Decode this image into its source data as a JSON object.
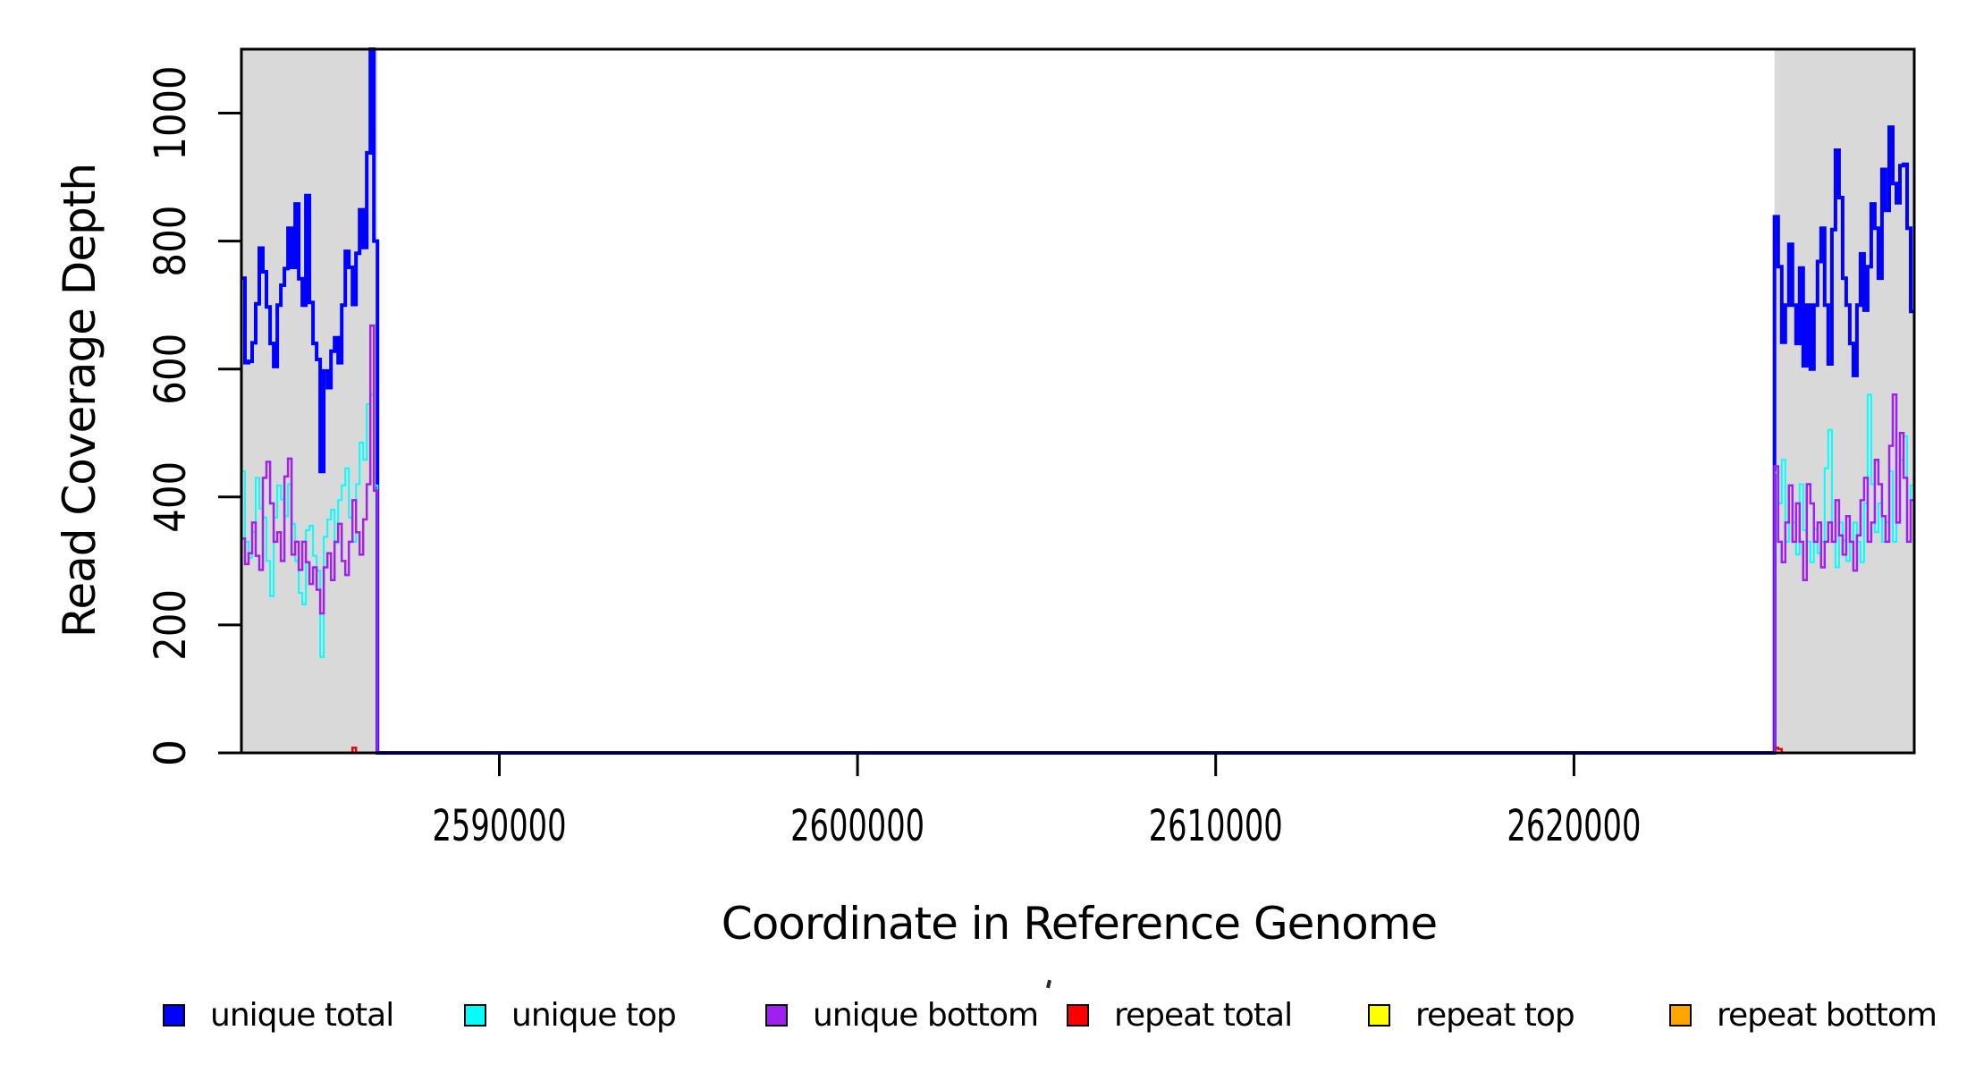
{
  "figure": {
    "xlabel": "Coordinate in Reference Genome",
    "ylabel": "Read Coverage Depth"
  },
  "legend": {
    "items": [
      {
        "label": "unique total",
        "color": "#0000FF"
      },
      {
        "label": "unique top",
        "color": "#00FFFF"
      },
      {
        "label": "unique bottom",
        "color": "#A020F0"
      },
      {
        "label": "repeat total",
        "color": "#FF0000"
      },
      {
        "label": "repeat top",
        "color": "#FFFF00"
      },
      {
        "label": "repeat bottom",
        "color": "#FFA500"
      }
    ]
  },
  "chart_data": {
    "type": "line",
    "subtype": "step-coverage",
    "title": "",
    "xlabel": "Coordinate in Reference Genome",
    "ylabel": "Read Coverage Depth",
    "xlim": [
      2582800,
      2629500
    ],
    "ylim": [
      0,
      1100
    ],
    "xticks": [
      2590000,
      2600000,
      2610000,
      2620000
    ],
    "yticks": [
      0,
      200,
      400,
      600,
      800,
      1000
    ],
    "grid": false,
    "legend_position": "bottom",
    "band_color": "#D9D9D9",
    "plot": {
      "l": 270,
      "t": 55,
      "r": 2141,
      "b": 842
    },
    "shaded_regions": [
      {
        "x0": 2582800,
        "x1": 2586600
      },
      {
        "x0": 2625600,
        "x1": 2629500
      }
    ],
    "series": [
      {
        "name": "unique total",
        "color": "#0000FF",
        "width": 4,
        "segments": [
          {
            "start": 2582800,
            "bin": 100,
            "values": [
              742,
              610,
              612,
              641,
              702,
              789,
              752,
              697,
              640,
              604,
              700,
              731,
              757,
              820,
              759,
              858,
              741,
              700,
              871,
              704,
              640,
              615,
              440,
              597,
              571,
              628,
              649,
              610,
              700,
              784,
              759,
              701,
              781,
              849,
              790,
              938,
              1100,
              800
            ]
          },
          {
            "start": 2586600,
            "bin": 39000,
            "values": [
              0
            ]
          },
          {
            "start": 2625600,
            "bin": 100,
            "values": [
              838,
              760,
              642,
              700,
              795,
              700,
              640,
              758,
              605,
              700,
              600,
              700,
              768,
              820,
              700,
              608,
              818,
              942,
              868,
              742,
              700,
              640,
              590,
              700,
              780,
              692,
              760,
              858,
              820,
              742,
              912,
              848,
              978,
              890,
              860,
              918,
              920,
              820,
              690
            ]
          }
        ]
      },
      {
        "name": "unique top",
        "color": "#00FFFF",
        "width": 2,
        "segments": [
          {
            "start": 2582800,
            "bin": 100,
            "values": [
              440,
              330,
              305,
              345,
              430,
              382,
              368,
              300,
              245,
              368,
              418,
              396,
              370,
              420,
              358,
              300,
              250,
              232,
              348,
              355,
              308,
              285,
              150,
              338,
              365,
              380,
              328,
              395,
              418,
              445,
              368,
              330,
              420,
              485,
              458,
              545,
              560,
              418
            ]
          },
          {
            "start": 2586600,
            "bin": 39000,
            "values": [
              0
            ]
          },
          {
            "start": 2625600,
            "bin": 100,
            "values": [
              438,
              390,
              458,
              330,
              418,
              360,
              310,
              420,
              348,
              330,
              298,
              350,
              312,
              330,
              445,
              505,
              330,
              290,
              360,
              332,
              300,
              330,
              360,
              330,
              298,
              390,
              560,
              420,
              345,
              390,
              330,
              360,
              440,
              330,
              360,
              458,
              495,
              330,
              418
            ]
          }
        ]
      },
      {
        "name": "unique bottom",
        "color": "#A020F0",
        "width": 2.5,
        "segments": [
          {
            "start": 2582800,
            "bin": 100,
            "values": [
              335,
              295,
              312,
              360,
              308,
              286,
              430,
              455,
              390,
              330,
              345,
              300,
              432,
              460,
              310,
              330,
              286,
              330,
              298,
              264,
              290,
              255,
              218,
              290,
              312,
              270,
              330,
              358,
              300,
              278,
              330,
              395,
              345,
              310,
              365,
              420,
              668,
              410
            ]
          },
          {
            "start": 2586600,
            "bin": 39000,
            "values": [
              0
            ]
          },
          {
            "start": 2625600,
            "bin": 100,
            "values": [
              448,
              330,
              298,
              360,
              418,
              330,
              390,
              330,
              270,
              420,
              390,
              330,
              360,
              290,
              330,
              360,
              330,
              395,
              340,
              310,
              370,
              330,
              285,
              340,
              395,
              430,
              330,
              360,
              458,
              420,
              370,
              330,
              480,
              560,
              360,
              500,
              430,
              330,
              395
            ]
          }
        ]
      },
      {
        "name": "repeat total",
        "color": "#FF0000",
        "width": 2.5,
        "segments": [
          {
            "start": 2582800,
            "bin": 3100,
            "values": [
              0
            ]
          },
          {
            "start": 2585900,
            "bin": 100,
            "values": [
              8
            ]
          },
          {
            "start": 2586000,
            "bin": 600,
            "values": [
              0
            ]
          },
          {
            "start": 2625600,
            "bin": 100,
            "values": [
              8,
              6
            ]
          },
          {
            "start": 2625800,
            "bin": 3700,
            "values": [
              0
            ]
          }
        ]
      },
      {
        "name": "repeat top",
        "color": "#FFFF00",
        "width": 2,
        "segments": [
          {
            "start": 2582800,
            "bin": 3800,
            "values": [
              0
            ]
          },
          {
            "start": 2625600,
            "bin": 3900,
            "values": [
              0
            ]
          }
        ]
      },
      {
        "name": "repeat bottom",
        "color": "#FFA500",
        "width": 3,
        "segments": [
          {
            "start": 2582800,
            "bin": 3800,
            "values": [
              0
            ]
          },
          {
            "start": 2625600,
            "bin": 3900,
            "values": [
              0
            ]
          }
        ]
      }
    ]
  }
}
